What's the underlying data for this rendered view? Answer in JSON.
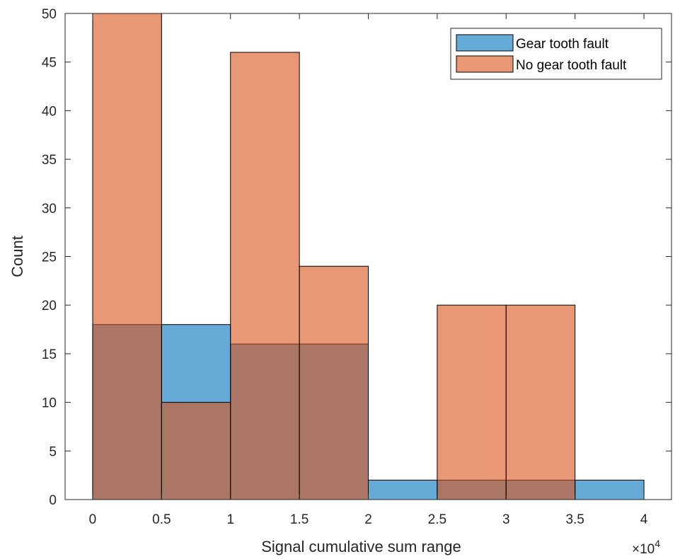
{
  "chart_data": {
    "type": "bar",
    "bin_edges": [
      0,
      0.5,
      1,
      1.5,
      2,
      2.5,
      3,
      3.5,
      4
    ],
    "series": [
      {
        "name": "Gear tooth fault",
        "values": [
          18,
          18,
          16,
          16,
          2,
          2,
          2,
          2
        ],
        "color": "#0072BD"
      },
      {
        "name": "No gear tooth fault",
        "values": [
          50,
          10,
          46,
          24,
          0,
          20,
          20,
          0
        ],
        "color": "#D95319"
      }
    ],
    "overlap_color": "#A97867",
    "xlabel": "Signal cumulative sum range",
    "ylabel": "Count",
    "x_exponent_label": "×10",
    "x_exponent_power": "4",
    "xlim": [
      -0.2,
      4.2
    ],
    "ylim": [
      0,
      50
    ],
    "xticks": [
      0,
      0.5,
      1,
      1.5,
      2,
      2.5,
      3,
      3.5,
      4
    ],
    "xtick_labels": [
      "0",
      "0.5",
      "1",
      "1.5",
      "2",
      "2.5",
      "3",
      "3.5",
      "4"
    ],
    "yticks": [
      0,
      5,
      10,
      15,
      20,
      25,
      30,
      35,
      40,
      45,
      50
    ],
    "ytick_labels": [
      "0",
      "5",
      "10",
      "15",
      "20",
      "25",
      "30",
      "35",
      "40",
      "45",
      "50"
    ],
    "grid": false,
    "legend_position": "top-right"
  }
}
